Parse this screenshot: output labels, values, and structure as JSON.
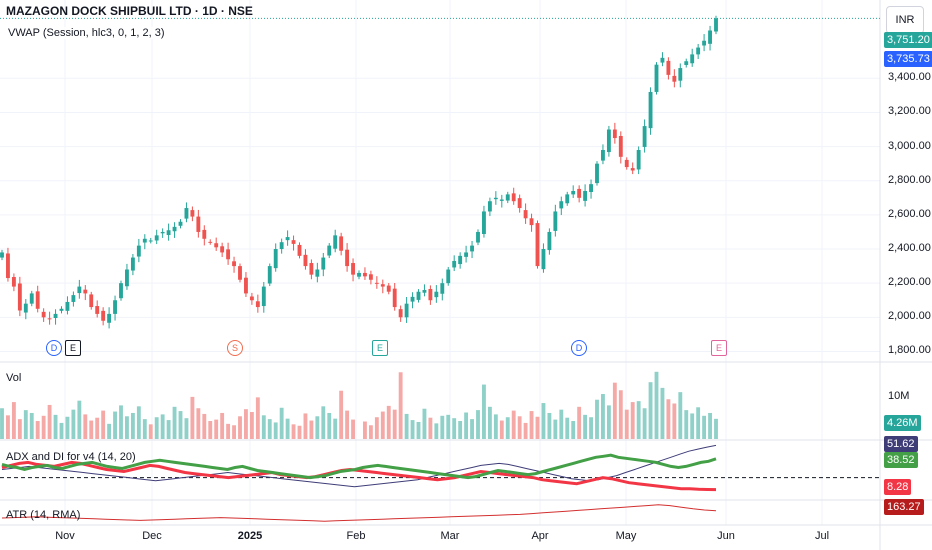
{
  "header": {
    "symbol_title": "MAZAGON DOCK SHIPBUIL LTD · 1D · NSE",
    "vwap_label": "VWAP (Session, hlc3, 0, 1, 2, 3)",
    "currency": "INR"
  },
  "price_badges": {
    "last": "3,751.20",
    "vwap": "3,735.73"
  },
  "volume_pane": {
    "title": "Vol",
    "scale_label": "10M",
    "badge": "4.26M"
  },
  "adx_pane": {
    "title": "ADX and DI for v4 (14, 20)",
    "badge_top": "51.62",
    "badge_mid": "38.52",
    "badge_low": "8.28"
  },
  "atr_pane": {
    "title": "ATR (14, RMA)",
    "badge": "163.27"
  },
  "colors": {
    "up": "#26a69a",
    "down": "#ef5350",
    "vol_up": "#8fd1c8",
    "vol_down": "#f4a9a7",
    "vwap": "#2962ff",
    "adx_green": "#43a047",
    "adx_red": "#f23645",
    "adx_navy": "#3f3d78",
    "atr": "#d32f2f"
  },
  "events": [
    {
      "letter": "D",
      "kind": "dividend",
      "color": "#2962ff"
    },
    {
      "letter": "E",
      "kind": "earnings",
      "color": "#131722"
    },
    {
      "letter": "S",
      "kind": "split",
      "color": "#f26b4f"
    },
    {
      "letter": "E",
      "kind": "earnings",
      "color": "#26a69a"
    },
    {
      "letter": "D",
      "kind": "dividend",
      "color": "#2962ff"
    },
    {
      "letter": "E",
      "kind": "earnings",
      "color": "#e0659a"
    }
  ],
  "chart_data": {
    "type": "candlestick",
    "price_axis": {
      "ticks": [
        "3,400.00",
        "3,200.00",
        "3,000.00",
        "2,800.00",
        "2,600.00",
        "2,400.00",
        "2,200.00",
        "2,000.00",
        "1,800.00"
      ],
      "range": [
        1750,
        3800
      ]
    },
    "time_axis": {
      "ticks": [
        "Nov",
        "Dec",
        "2025",
        "Feb",
        "Mar",
        "Apr",
        "May",
        "Jun",
        "Jul"
      ]
    },
    "close": [
      2380,
      2230,
      2180,
      2040,
      2080,
      2140,
      2050,
      2000,
      1990,
      2020,
      2050,
      2090,
      2130,
      2180,
      2140,
      2060,
      2020,
      1980,
      2020,
      2100,
      2200,
      2280,
      2350,
      2420,
      2460,
      2450,
      2480,
      2500,
      2510,
      2530,
      2560,
      2640,
      2590,
      2500,
      2460,
      2440,
      2410,
      2380,
      2340,
      2300,
      2220,
      2140,
      2100,
      2060,
      2180,
      2300,
      2400,
      2440,
      2470,
      2430,
      2360,
      2300,
      2250,
      2280,
      2350,
      2420,
      2480,
      2390,
      2300,
      2250,
      2260,
      2240,
      2220,
      2200,
      2180,
      2150,
      2060,
      2000,
      2080,
      2120,
      2150,
      2160,
      2100,
      2150,
      2200,
      2280,
      2330,
      2360,
      2380,
      2420,
      2500,
      2620,
      2680,
      2700,
      2690,
      2720,
      2680,
      2640,
      2580,
      2540,
      2300,
      2400,
      2500,
      2620,
      2680,
      2720,
      2740,
      2700,
      2740,
      2780,
      2900,
      2980,
      3100,
      3050,
      2940,
      2880,
      2860,
      2980,
      3120,
      3320,
      3480,
      3520,
      3420,
      3380,
      3460,
      3500,
      3540,
      3580,
      3620,
      3680,
      3751.2
    ],
    "volume_millions": [
      6.5,
      5.0,
      7.8,
      4.2,
      6.1,
      5.5,
      3.8,
      4.9,
      7.2,
      5.1,
      3.4,
      4.7,
      6.2,
      8.1,
      5.2,
      3.9,
      4.5,
      6.0,
      3.2,
      5.8,
      7.1,
      4.8,
      5.5,
      6.9,
      4.2,
      3.1,
      4.6,
      5.2,
      4.0,
      6.8,
      5.9,
      4.4,
      8.9,
      6.5,
      5.3,
      3.8,
      4.1,
      5.5,
      3.2,
      2.9,
      4.8,
      6.3,
      5.7,
      8.8,
      5.0,
      4.2,
      3.5,
      6.6,
      4.3,
      3.1,
      2.8,
      5.4,
      3.9,
      4.8,
      6.9,
      5.5,
      4.3,
      10.2,
      6.0,
      4.1,
      3.7,
      2.9,
      4.6,
      5.8,
      7.0,
      6.2,
      14.1,
      5.3,
      4.0,
      3.6,
      6.4,
      4.5,
      3.3,
      4.9,
      5.1,
      4.4,
      3.8,
      5.6,
      4.2,
      6.1,
      11.5,
      6.8,
      5.2,
      3.9,
      4.6,
      6.0,
      4.8,
      3.4,
      5.9,
      4.7,
      7.6,
      5.5,
      4.1,
      6.2,
      4.5,
      3.8,
      6.8,
      5.1,
      4.6,
      8.3,
      9.5,
      7.1,
      11.9,
      10.3,
      6.2,
      7.8,
      8.0,
      6.5,
      12.0,
      14.2,
      10.8,
      8.4,
      7.5,
      9.9,
      6.1,
      5.4,
      6.7,
      4.9,
      5.5,
      4.26
    ],
    "adx_series": {
      "green": [
        33,
        31,
        30,
        28,
        30,
        31,
        32,
        30,
        29,
        31,
        33,
        34,
        35,
        33,
        31,
        30,
        29,
        31,
        33,
        35,
        36,
        37,
        36,
        35,
        34,
        33,
        32,
        31,
        30,
        29,
        28,
        30,
        31,
        29,
        27,
        26,
        25,
        24,
        23,
        22,
        21,
        20,
        21,
        22,
        24,
        26,
        27,
        28,
        30,
        31,
        32,
        31,
        30,
        29,
        28,
        27,
        26,
        25,
        24,
        23,
        22,
        21,
        20,
        21,
        23,
        25,
        27,
        26,
        25,
        24,
        23,
        24,
        26,
        28,
        30,
        32,
        34,
        36,
        38,
        40,
        41,
        42,
        40,
        39,
        38,
        37,
        36,
        35,
        33,
        31,
        30,
        31,
        33,
        35,
        36,
        38.52
      ],
      "red": [
        30,
        32,
        34,
        35,
        33,
        32,
        31,
        33,
        35,
        34,
        32,
        30,
        28,
        27,
        26,
        28,
        30,
        32,
        31,
        29,
        27,
        25,
        24,
        23,
        22,
        21,
        20,
        21,
        22,
        23,
        24,
        25,
        23,
        22,
        21,
        20,
        21,
        23,
        25,
        27,
        28,
        27,
        26,
        25,
        24,
        23,
        22,
        21,
        20,
        19,
        18,
        19,
        20,
        22,
        24,
        26,
        25,
        24,
        23,
        22,
        21,
        20,
        18,
        17,
        16,
        15,
        14,
        16,
        18,
        20,
        19,
        17,
        15,
        14,
        13,
        12,
        11,
        10,
        9,
        9,
        8.5,
        8.3,
        8.28
      ],
      "navy": [
        28,
        29,
        30,
        31,
        30,
        29,
        28,
        27,
        26,
        25,
        24,
        23,
        22,
        21,
        20,
        19,
        18,
        17,
        18,
        19,
        20,
        21,
        22,
        23,
        24,
        25,
        24,
        23,
        22,
        21,
        20,
        19,
        18,
        17,
        16,
        15,
        14,
        13,
        12,
        11,
        12,
        13,
        14,
        15,
        16,
        17,
        18,
        20,
        22,
        24,
        26,
        28,
        30,
        32,
        33,
        34,
        33,
        31,
        29,
        27,
        25,
        23,
        21,
        19,
        18,
        17,
        18,
        20,
        22,
        25,
        28,
        31,
        34,
        37,
        40,
        43,
        46,
        48,
        50,
        51.62
      ]
    },
    "atr_series": [
      145,
      146,
      147,
      148,
      147,
      146,
      145,
      144,
      143,
      142,
      141,
      140,
      139,
      140,
      141,
      142,
      143,
      144,
      145,
      146,
      145,
      144,
      143,
      142,
      141,
      140,
      139,
      138,
      137,
      138,
      139,
      140,
      141,
      142,
      143,
      144,
      145,
      146,
      147,
      148,
      149,
      150,
      151,
      152,
      153,
      154,
      156,
      158,
      160,
      162,
      164,
      166,
      168,
      170,
      172,
      174,
      176,
      178,
      176,
      172,
      168,
      165,
      163.27
    ]
  }
}
